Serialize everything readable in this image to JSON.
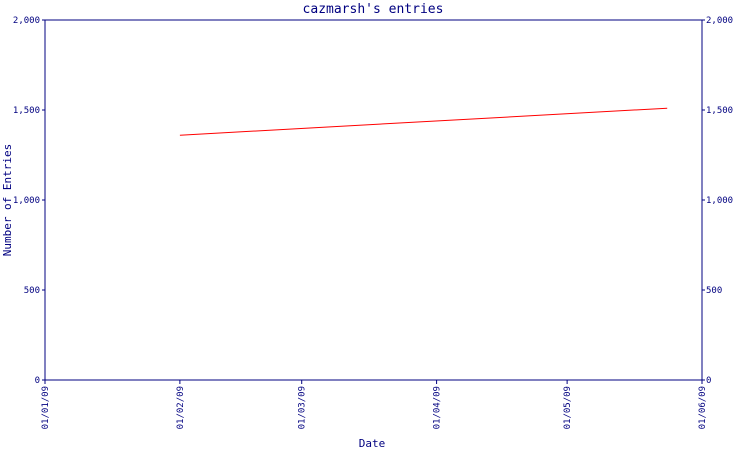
{
  "chart_data": {
    "type": "line",
    "title": "cazmarsh's entries",
    "xlabel": "Date",
    "ylabel": "Number of Entries",
    "x_tick_labels": [
      "01/01/09",
      "01/02/09",
      "01/03/09",
      "01/04/09",
      "01/05/09",
      "01/06/09"
    ],
    "y_tick_labels": [
      "0",
      "500",
      "1,000",
      "1,500",
      "2,000"
    ],
    "y_ticks": [
      0,
      500,
      1000,
      1500,
      2000
    ],
    "ylim": [
      0,
      2000
    ],
    "xlim": [
      "2009-01-01",
      "2009-06-01"
    ],
    "x_ticks": [
      "2009-01-01",
      "2009-02-01",
      "2009-03-01",
      "2009-04-01",
      "2009-05-01",
      "2009-06-01"
    ],
    "series": [
      {
        "points": [
          {
            "x": "2009-02-01",
            "y": 1360
          },
          {
            "x": "2009-05-24",
            "y": 1510
          }
        ]
      }
    ],
    "grid": false,
    "colors": {
      "axis": "#000080",
      "line": "#ff0000",
      "text": "#000080"
    }
  }
}
